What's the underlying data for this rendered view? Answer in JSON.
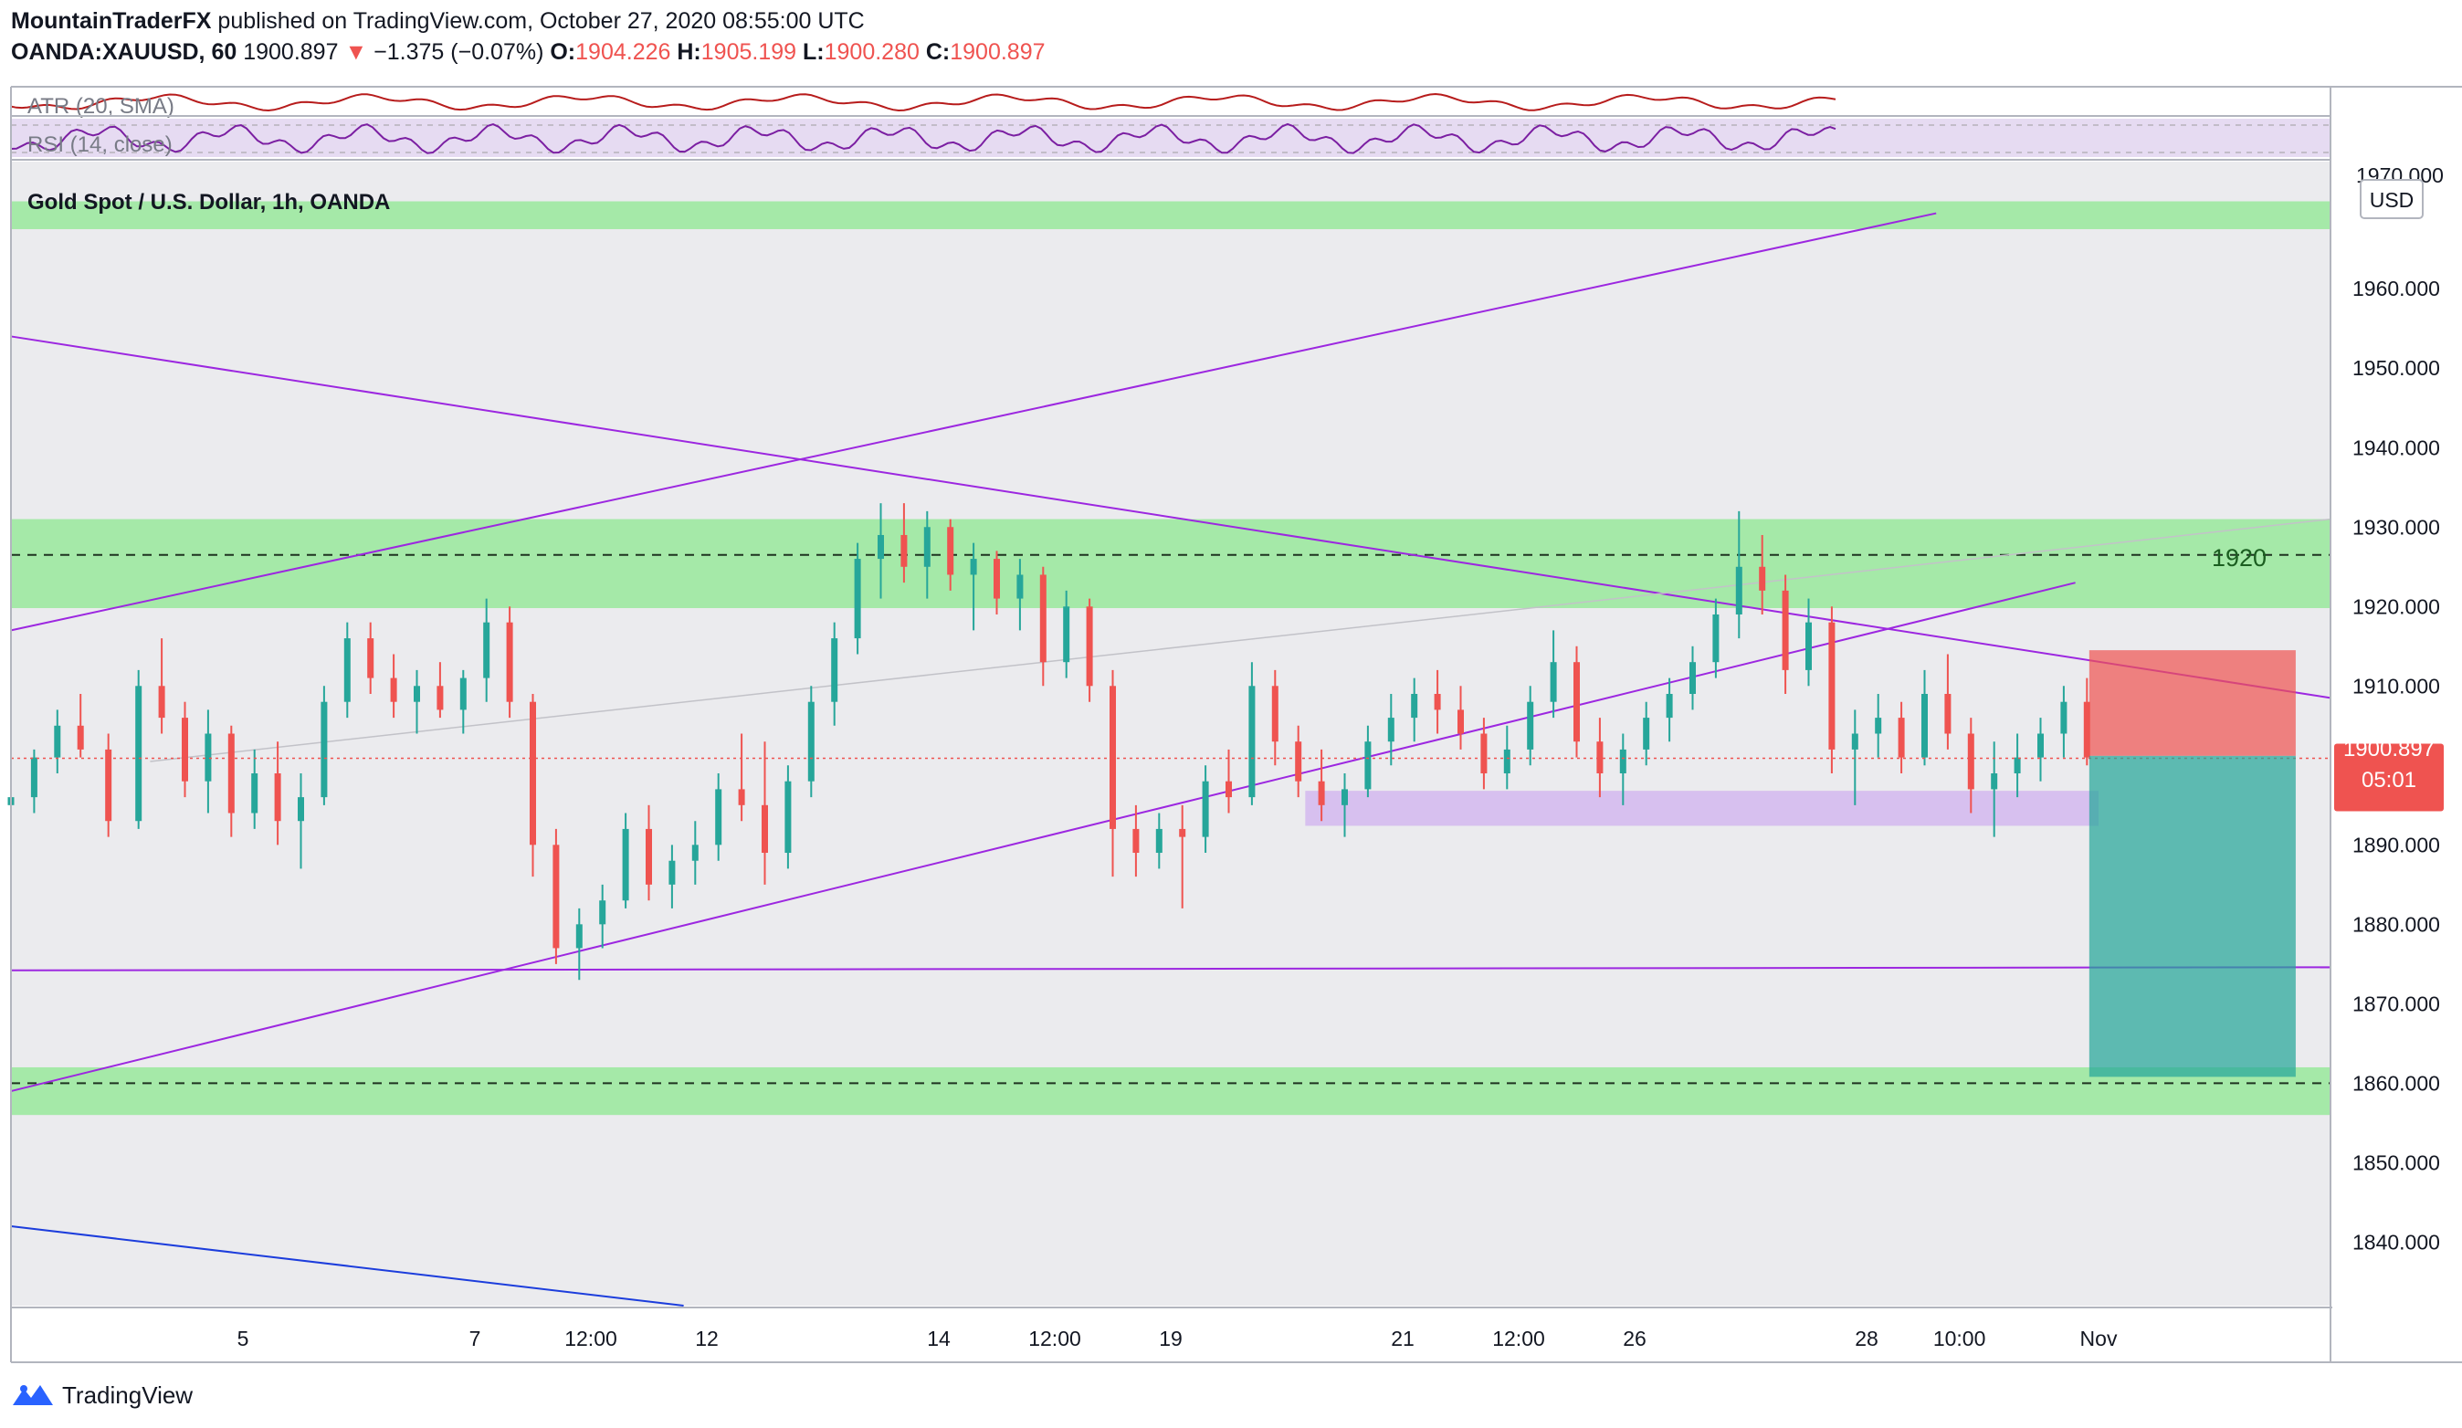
{
  "header": {
    "publisher": "MountainTraderFX",
    "published_text": "published on TradingView.com, October 27, 2020 08:55:00 UTC",
    "symbol": "OANDA:XAUUSD, 60",
    "last": "1900.897",
    "change": "−1.375 (−0.07%)",
    "open_label": "O:",
    "open": "1904.226",
    "high_label": "H:",
    "high": "1905.199",
    "low_label": "L:",
    "low": "1900.280",
    "close_label": "C:",
    "close": "1900.897"
  },
  "indicators": {
    "atr_label": "ATR (20, SMA)",
    "rsi_label": "RSI (14, close)",
    "atr_color": "#b71c1c",
    "rsi_color": "#7b1fa2"
  },
  "legend": {
    "title": "Gold Spot / U.S. Dollar, 1h, OANDA"
  },
  "price_axis": {
    "currency": "USD",
    "top_label": "1970.000",
    "current_price": "1900.897",
    "countdown": "05:01"
  },
  "annotations": {
    "level_label": "1920"
  },
  "footer": {
    "brand": "TradingView"
  },
  "colors": {
    "up": "#26a69a",
    "down": "#ef5350",
    "zone": "#a5e9a8",
    "purple_zone": "#d3b8ef",
    "trendline": "#9c27e0",
    "stop": "#ef5350",
    "target": "#26a69a",
    "blue_line": "#1c3ddc"
  },
  "chart_data": {
    "type": "candlestick",
    "title": "Gold Spot / U.S. Dollar, 1h, OANDA",
    "ylim": [
      1832,
      1976
    ],
    "y_ticks": [
      1840,
      1850,
      1860,
      1870,
      1880,
      1890,
      1900,
      1910,
      1920,
      1930,
      1940,
      1950,
      1960
    ],
    "x_ticks": [
      "5",
      "7",
      "12:00",
      "12",
      "14",
      "12:00",
      "19",
      "21",
      "12:00",
      "26",
      "28",
      "10:00",
      "Nov"
    ],
    "x_tick_positions": [
      4,
      5,
      5.5,
      6,
      7,
      7.5,
      8,
      9,
      9.5,
      10,
      11,
      11.4,
      12
    ],
    "x_range": [
      3,
      13
    ],
    "ohlc": [
      [
        3.0,
        1895,
        1899,
        1893,
        1896
      ],
      [
        3.1,
        1896,
        1902,
        1894,
        1901
      ],
      [
        3.2,
        1901,
        1907,
        1899,
        1905
      ],
      [
        3.3,
        1905,
        1909,
        1901,
        1902
      ],
      [
        3.42,
        1902,
        1904,
        1891,
        1893
      ],
      [
        3.55,
        1893,
        1912,
        1892,
        1910
      ],
      [
        3.65,
        1910,
        1916,
        1904,
        1906
      ],
      [
        3.75,
        1906,
        1908,
        1896,
        1898
      ],
      [
        3.85,
        1898,
        1907,
        1894,
        1904
      ],
      [
        3.95,
        1904,
        1905,
        1891,
        1894
      ],
      [
        4.05,
        1894,
        1902,
        1892,
        1899
      ],
      [
        4.15,
        1899,
        1903,
        1890,
        1893
      ],
      [
        4.25,
        1893,
        1899,
        1887,
        1896
      ],
      [
        4.35,
        1896,
        1910,
        1895,
        1908
      ],
      [
        4.45,
        1908,
        1918,
        1906,
        1916
      ],
      [
        4.55,
        1916,
        1918,
        1909,
        1911
      ],
      [
        4.65,
        1911,
        1914,
        1906,
        1908
      ],
      [
        4.75,
        1908,
        1912,
        1904,
        1910
      ],
      [
        4.85,
        1910,
        1913,
        1906,
        1907
      ],
      [
        4.95,
        1907,
        1912,
        1904,
        1911
      ],
      [
        5.05,
        1911,
        1921,
        1908,
        1918
      ],
      [
        5.15,
        1918,
        1920,
        1906,
        1908
      ],
      [
        5.25,
        1908,
        1909,
        1886,
        1890
      ],
      [
        5.35,
        1890,
        1892,
        1875,
        1877
      ],
      [
        5.45,
        1877,
        1882,
        1873,
        1880
      ],
      [
        5.55,
        1880,
        1885,
        1877,
        1883
      ],
      [
        5.65,
        1883,
        1894,
        1882,
        1892
      ],
      [
        5.75,
        1892,
        1895,
        1883,
        1885
      ],
      [
        5.85,
        1885,
        1890,
        1882,
        1888
      ],
      [
        5.95,
        1888,
        1893,
        1885,
        1890
      ],
      [
        6.05,
        1890,
        1899,
        1888,
        1897
      ],
      [
        6.15,
        1897,
        1904,
        1893,
        1895
      ],
      [
        6.25,
        1895,
        1903,
        1885,
        1889
      ],
      [
        6.35,
        1889,
        1900,
        1887,
        1898
      ],
      [
        6.45,
        1898,
        1910,
        1896,
        1908
      ],
      [
        6.55,
        1908,
        1918,
        1905,
        1916
      ],
      [
        6.65,
        1916,
        1928,
        1914,
        1926
      ],
      [
        6.75,
        1926,
        1933,
        1921,
        1929
      ],
      [
        6.85,
        1929,
        1933,
        1923,
        1925
      ],
      [
        6.95,
        1925,
        1932,
        1921,
        1930
      ],
      [
        7.05,
        1930,
        1931,
        1922,
        1924
      ],
      [
        7.15,
        1924,
        1928,
        1917,
        1926
      ],
      [
        7.25,
        1926,
        1927,
        1919,
        1921
      ],
      [
        7.35,
        1921,
        1926,
        1917,
        1924
      ],
      [
        7.45,
        1924,
        1925,
        1910,
        1913
      ],
      [
        7.55,
        1913,
        1922,
        1911,
        1920
      ],
      [
        7.65,
        1920,
        1921,
        1908,
        1910
      ],
      [
        7.75,
        1910,
        1912,
        1886,
        1892
      ],
      [
        7.85,
        1892,
        1895,
        1886,
        1889
      ],
      [
        7.95,
        1889,
        1894,
        1887,
        1892
      ],
      [
        8.05,
        1892,
        1895,
        1882,
        1891
      ],
      [
        8.15,
        1891,
        1900,
        1889,
        1898
      ],
      [
        8.25,
        1898,
        1902,
        1894,
        1896
      ],
      [
        8.35,
        1896,
        1913,
        1895,
        1910
      ],
      [
        8.45,
        1910,
        1912,
        1900,
        1903
      ],
      [
        8.55,
        1903,
        1905,
        1896,
        1898
      ],
      [
        8.65,
        1898,
        1902,
        1893,
        1895
      ],
      [
        8.75,
        1895,
        1899,
        1891,
        1897
      ],
      [
        8.85,
        1897,
        1905,
        1896,
        1903
      ],
      [
        8.95,
        1903,
        1909,
        1900,
        1906
      ],
      [
        9.05,
        1906,
        1911,
        1903,
        1909
      ],
      [
        9.15,
        1909,
        1912,
        1904,
        1907
      ],
      [
        9.25,
        1907,
        1910,
        1902,
        1904
      ],
      [
        9.35,
        1904,
        1906,
        1897,
        1899
      ],
      [
        9.45,
        1899,
        1905,
        1897,
        1902
      ],
      [
        9.55,
        1902,
        1910,
        1900,
        1908
      ],
      [
        9.65,
        1908,
        1917,
        1906,
        1913
      ],
      [
        9.75,
        1913,
        1915,
        1901,
        1903
      ],
      [
        9.85,
        1903,
        1906,
        1896,
        1899
      ],
      [
        9.95,
        1899,
        1904,
        1895,
        1902
      ],
      [
        10.05,
        1902,
        1908,
        1900,
        1906
      ],
      [
        10.15,
        1906,
        1911,
        1903,
        1909
      ],
      [
        10.25,
        1909,
        1915,
        1907,
        1913
      ],
      [
        10.35,
        1913,
        1921,
        1911,
        1919
      ],
      [
        10.45,
        1919,
        1932,
        1916,
        1925
      ],
      [
        10.55,
        1925,
        1929,
        1919,
        1922
      ],
      [
        10.65,
        1922,
        1924,
        1909,
        1912
      ],
      [
        10.75,
        1912,
        1921,
        1910,
        1918
      ],
      [
        10.85,
        1918,
        1920,
        1899,
        1902
      ],
      [
        10.95,
        1902,
        1907,
        1895,
        1904
      ],
      [
        11.05,
        1904,
        1909,
        1901,
        1906
      ],
      [
        11.15,
        1906,
        1908,
        1899,
        1901
      ],
      [
        11.25,
        1901,
        1912,
        1900,
        1909
      ],
      [
        11.35,
        1909,
        1914,
        1902,
        1904
      ],
      [
        11.45,
        1904,
        1906,
        1894,
        1897
      ],
      [
        11.55,
        1897,
        1903,
        1891,
        1899
      ],
      [
        11.65,
        1899,
        1904,
        1896,
        1901
      ],
      [
        11.75,
        1901,
        1906,
        1898,
        1904
      ],
      [
        11.85,
        1904,
        1910,
        1901,
        1908
      ],
      [
        11.95,
        1908,
        1911,
        1900,
        1901
      ]
    ],
    "zones": [
      {
        "from": 1967.5,
        "to": 1971,
        "color": "green"
      },
      {
        "from": 1919.8,
        "to": 1931,
        "color": "green"
      },
      {
        "from": 1856,
        "to": 1862,
        "color": "green"
      }
    ],
    "purple_zone": {
      "x_from": 8.58,
      "x_to": 12.0,
      "from": 1892.4,
      "to": 1896.8
    },
    "dashed_levels": [
      1926.5,
      1860
    ],
    "current_price": 1900.897,
    "trendlines": [
      {
        "from": [
          3.0,
          1954
        ],
        "to": [
          13.0,
          1908.5
        ],
        "color": "purple"
      },
      {
        "from": [
          3.0,
          1917
        ],
        "to": [
          11.3,
          1969.5
        ],
        "color": "purple"
      },
      {
        "from": [
          3.0,
          1859
        ],
        "to": [
          11.9,
          1923
        ],
        "color": "purple"
      },
      {
        "from": [
          3.0,
          1874.2
        ],
        "to": [
          13.0,
          1874.6
        ],
        "color": "purple"
      },
      {
        "from": [
          3.0,
          1842
        ],
        "to": [
          5.9,
          1832
        ],
        "color": "blue"
      },
      {
        "from": [
          3.6,
          1900.5
        ],
        "to": [
          13.0,
          1931
        ],
        "color": "gray"
      }
    ],
    "position": {
      "x_from": 11.96,
      "x_to": 12.85,
      "entry": 1901.2,
      "stop": 1914.5,
      "target": 1860.8
    }
  }
}
